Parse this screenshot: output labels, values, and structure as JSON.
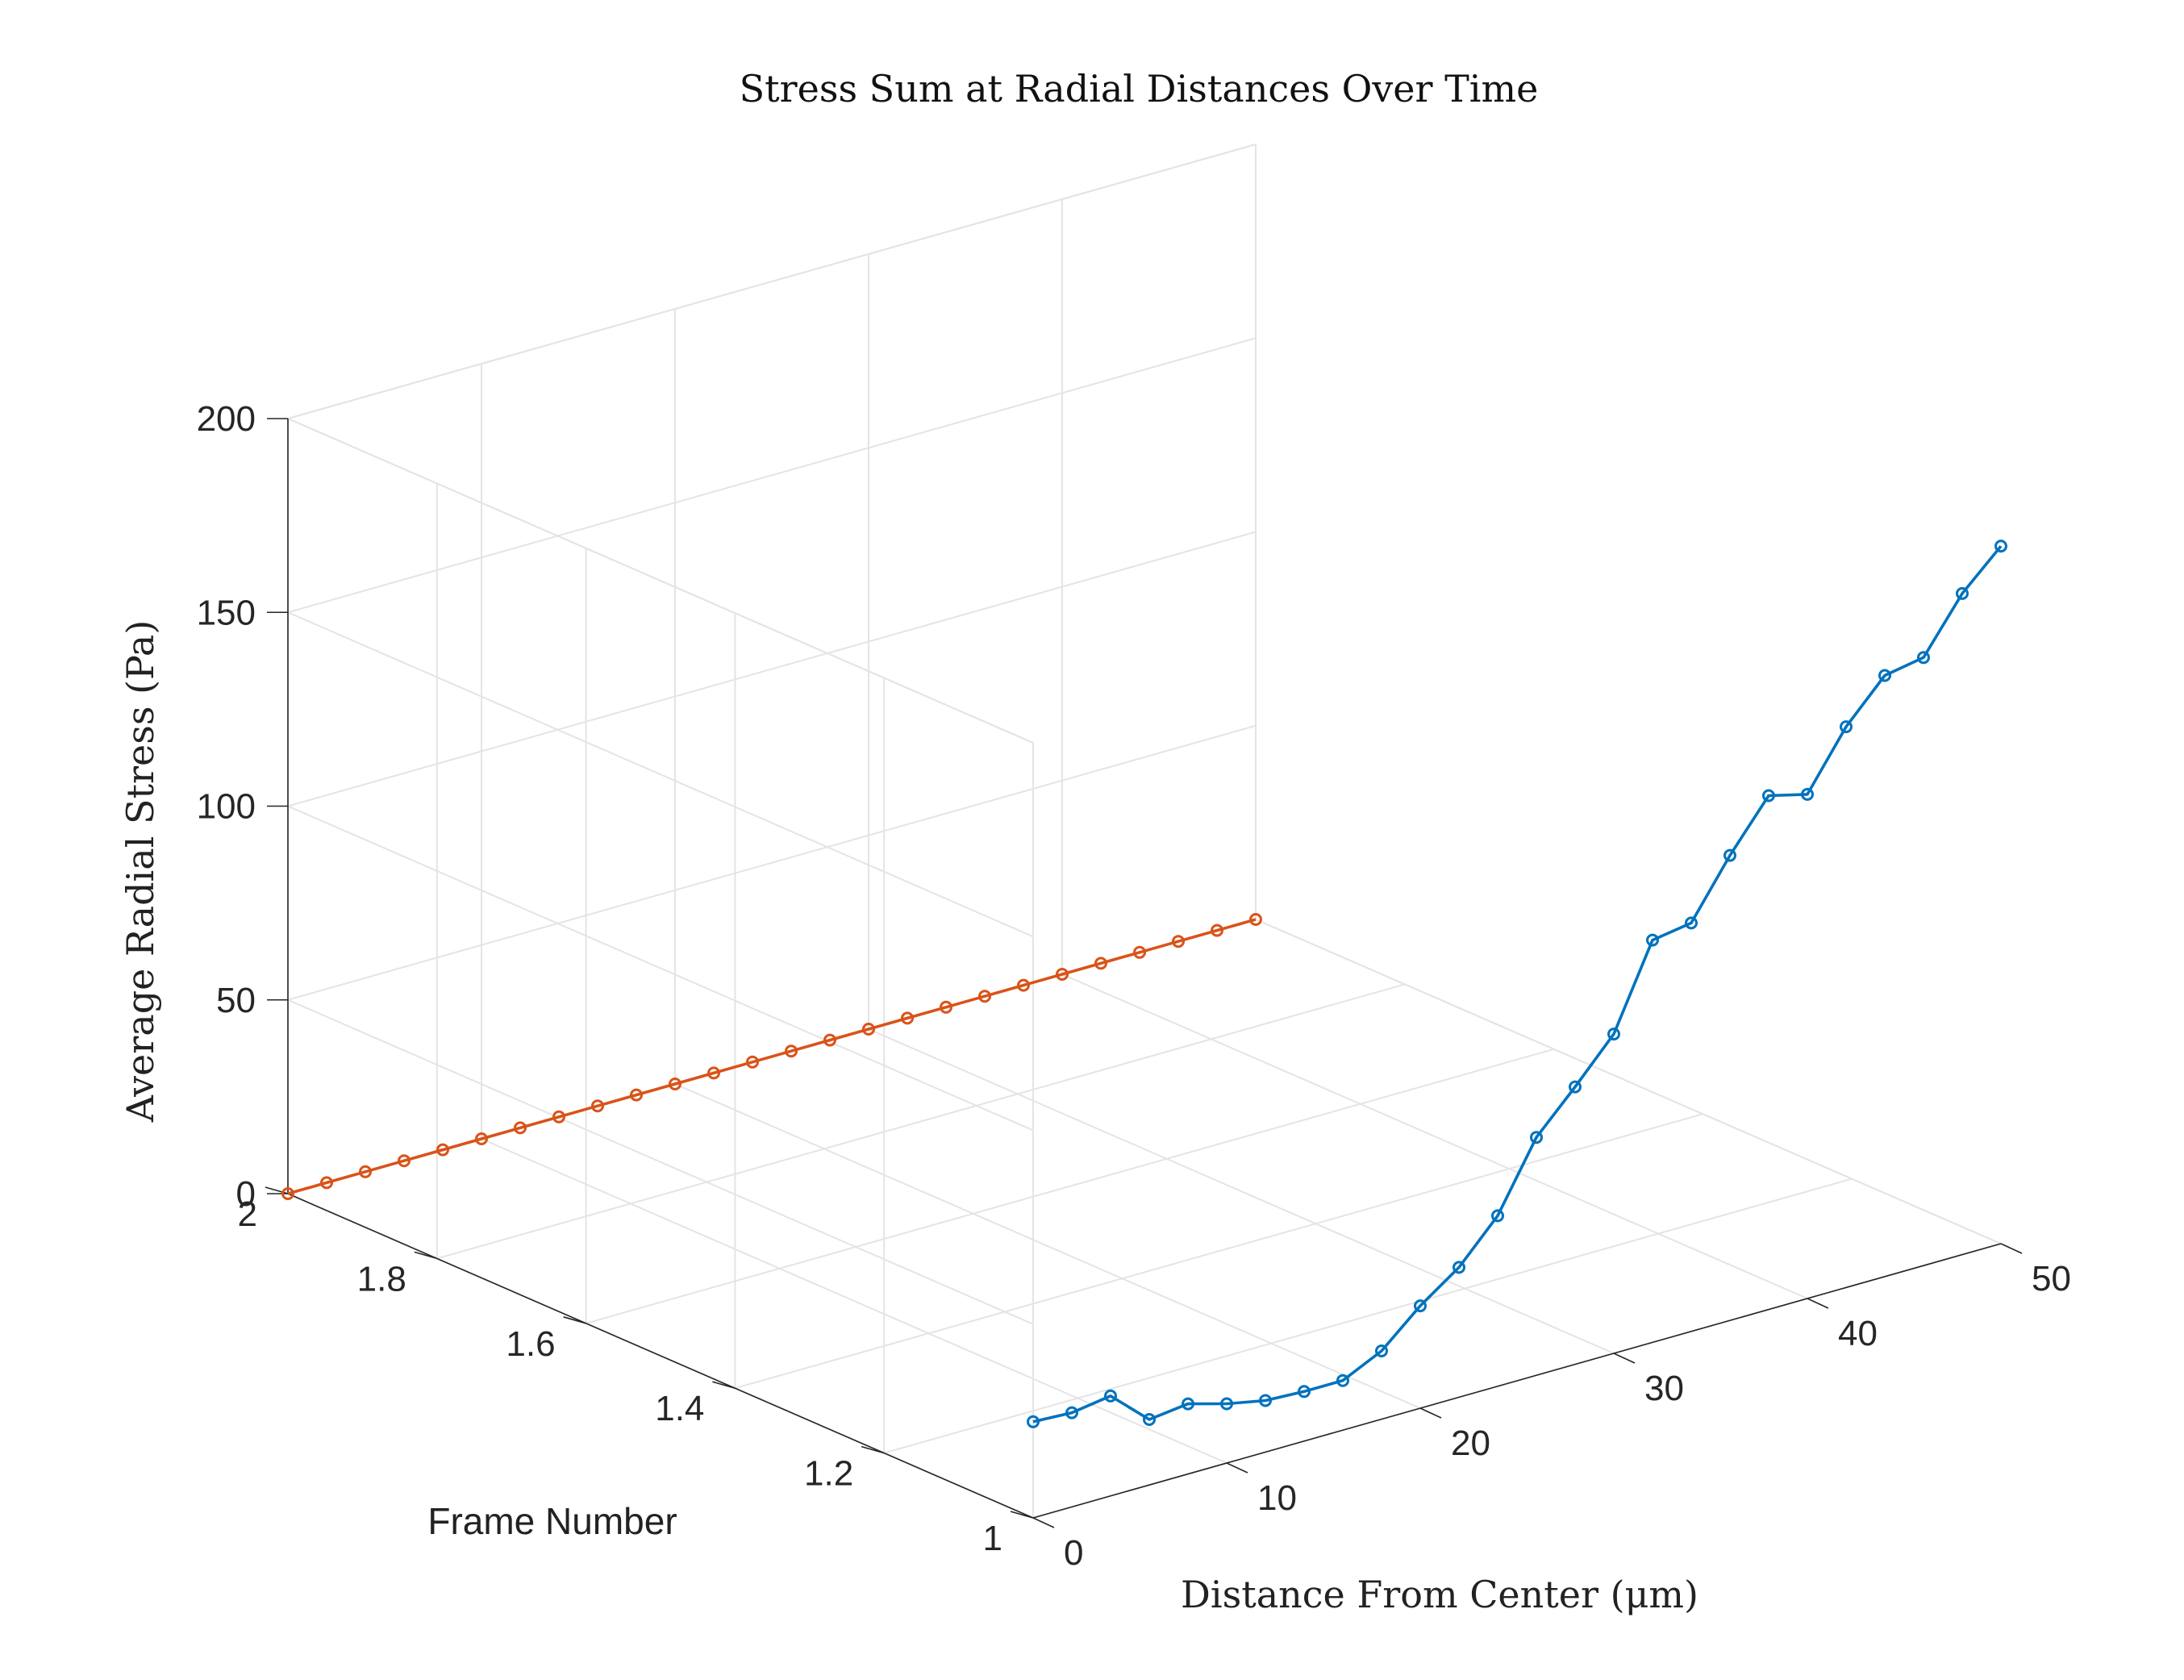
{
  "chart_data": {
    "type": "line",
    "title": "Stress Sum at Radial Distances Over Time",
    "xlabel": "Distance From Center (μm)",
    "ylabel": "Frame Number",
    "zlabel": "Average Radial Stress (Pa)",
    "xlim": [
      0,
      50
    ],
    "ylim": [
      1,
      2
    ],
    "zlim": [
      0,
      200
    ],
    "xticks": [
      "0",
      "10",
      "20",
      "30",
      "40",
      "50"
    ],
    "yticks": [
      "1",
      "1.2",
      "1.4",
      "1.6",
      "1.8",
      "2"
    ],
    "zticks": [
      "0",
      "50",
      "100",
      "150",
      "200"
    ],
    "grid": true,
    "series": [
      {
        "frame": 1,
        "color": "#0072BD",
        "x": [
          0,
          2,
          4,
          6,
          8,
          10,
          12,
          14,
          16,
          18,
          20,
          22,
          24,
          26,
          28,
          30,
          32,
          34,
          36,
          38,
          40,
          42,
          44,
          46,
          48,
          50
        ],
        "z": [
          24.8,
          24.3,
          25.8,
          16.9,
          18.1,
          15.3,
          13.3,
          12.8,
          12.8,
          17.6,
          26.4,
          33.5,
          44.0,
          61.4,
          71.6,
          82.4,
          103.8,
          105.4,
          120.0,
          132.6,
          130.1,
          144.7,
          155.1,
          156.9,
          170.6,
          180.0
        ]
      },
      {
        "frame": 2,
        "color": "#D95319",
        "x": [
          0,
          2,
          4,
          6,
          8,
          10,
          12,
          14,
          16,
          18,
          20,
          22,
          24,
          26,
          28,
          30,
          32,
          34,
          36,
          38,
          40,
          42,
          44,
          46,
          48,
          50
        ],
        "z": [
          0,
          0,
          0,
          0,
          0,
          0,
          0,
          0,
          0,
          0,
          0,
          0,
          0,
          0,
          0,
          0,
          0,
          0,
          0,
          0,
          0,
          0,
          0,
          0,
          0,
          0
        ]
      }
    ]
  }
}
